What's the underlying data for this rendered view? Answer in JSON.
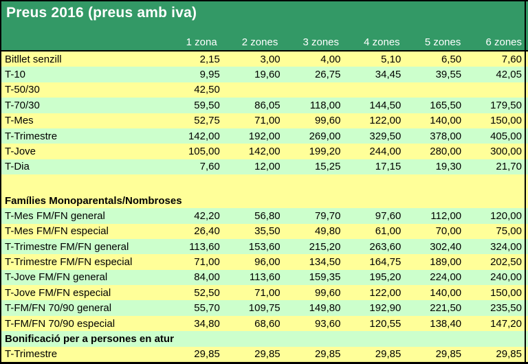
{
  "colors": {
    "header_green": "#339966",
    "row_yellow": "#ffff99",
    "row_mint": "#ccffcc",
    "frame_border": "#000000",
    "header_text": "#ffffff",
    "body_text": "#000000"
  },
  "header": {
    "title": "Preus 2016 (preus amb iva)",
    "columns": [
      "1 zona",
      "2 zones",
      "3 zones",
      "4 zones",
      "5 zones",
      "6 zones"
    ]
  },
  "table": {
    "rows": [
      {
        "label": "Bitllet senzill",
        "style": "yellow",
        "bold": false,
        "tall": false,
        "values": [
          "2,15",
          "3,00",
          "4,00",
          "5,10",
          "6,50",
          "7,60"
        ]
      },
      {
        "label": "T-10",
        "style": "mint",
        "bold": false,
        "tall": false,
        "values": [
          "9,95",
          "19,60",
          "26,75",
          "34,45",
          "39,55",
          "42,05"
        ]
      },
      {
        "label": "T-50/30",
        "style": "yellow",
        "bold": false,
        "tall": false,
        "values": [
          "42,50",
          "",
          "",
          "",
          "",
          ""
        ]
      },
      {
        "label": "T-70/30",
        "style": "mint",
        "bold": false,
        "tall": false,
        "values": [
          "59,50",
          "86,05",
          "118,00",
          "144,50",
          "165,50",
          "179,50"
        ]
      },
      {
        "label": "T-Mes",
        "style": "yellow",
        "bold": false,
        "tall": false,
        "values": [
          "52,75",
          "71,00",
          "99,60",
          "122,00",
          "140,00",
          "150,00"
        ]
      },
      {
        "label": "T-Trimestre",
        "style": "mint",
        "bold": false,
        "tall": false,
        "values": [
          "142,00",
          "192,00",
          "269,00",
          "329,50",
          "378,00",
          "405,00"
        ]
      },
      {
        "label": "T-Jove",
        "style": "yellow",
        "bold": false,
        "tall": false,
        "values": [
          "105,00",
          "142,00",
          "199,20",
          "244,00",
          "280,00",
          "300,00"
        ]
      },
      {
        "label": "T-Dia",
        "style": "mint",
        "bold": false,
        "tall": false,
        "values": [
          "7,60",
          "12,00",
          "15,25",
          "17,15",
          "19,30",
          "21,70"
        ]
      },
      {
        "label": "",
        "style": "yellow",
        "bold": false,
        "tall": true,
        "values": [
          "",
          "",
          "",
          "",
          "",
          ""
        ]
      },
      {
        "label": "Famílies Monoparentals/Nombroses",
        "style": "yellow",
        "bold": true,
        "tall": false,
        "values": [
          "",
          "",
          "",
          "",
          "",
          ""
        ]
      },
      {
        "label": "T-Mes FM/FN general",
        "style": "mint",
        "bold": false,
        "tall": false,
        "values": [
          "42,20",
          "56,80",
          "79,70",
          "97,60",
          "112,00",
          "120,00"
        ]
      },
      {
        "label": "T-Mes FM/FN especial",
        "style": "yellow",
        "bold": false,
        "tall": false,
        "values": [
          "26,40",
          "35,50",
          "49,80",
          "61,00",
          "70,00",
          "75,00"
        ]
      },
      {
        "label": "T-Trimestre FM/FN general",
        "style": "mint",
        "bold": false,
        "tall": false,
        "values": [
          "113,60",
          "153,60",
          "215,20",
          "263,60",
          "302,40",
          "324,00"
        ]
      },
      {
        "label": "T-Trimestre FM/FN especial",
        "style": "yellow",
        "bold": false,
        "tall": false,
        "values": [
          "71,00",
          "96,00",
          "134,50",
          "164,75",
          "189,00",
          "202,50"
        ]
      },
      {
        "label": "T-Jove FM/FN general",
        "style": "mint",
        "bold": false,
        "tall": false,
        "values": [
          "84,00",
          "113,60",
          "159,35",
          "195,20",
          "224,00",
          "240,00"
        ]
      },
      {
        "label": "T-Jove FM/FN especial",
        "style": "yellow",
        "bold": false,
        "tall": false,
        "values": [
          "52,50",
          "71,00",
          "99,60",
          "122,00",
          "140,00",
          "150,00"
        ]
      },
      {
        "label": "T-FM/FN 70/90 general",
        "style": "mint",
        "bold": false,
        "tall": false,
        "values": [
          "55,70",
          "109,75",
          "149,80",
          "192,90",
          "221,50",
          "235,50"
        ]
      },
      {
        "label": "T-FM/FN 70/90 especial",
        "style": "yellow",
        "bold": false,
        "tall": false,
        "values": [
          "34,80",
          "68,60",
          "93,60",
          "120,55",
          "138,40",
          "147,20"
        ]
      },
      {
        "label": "Bonificació per a persones en atur",
        "style": "mint",
        "bold": true,
        "tall": false,
        "values": [
          "",
          "",
          "",
          "",
          "",
          ""
        ]
      },
      {
        "label": "T-Trimestre",
        "style": "yellow",
        "bold": false,
        "tall": false,
        "values": [
          "29,85",
          "29,85",
          "29,85",
          "29,85",
          "29,85",
          "29,85"
        ]
      }
    ]
  }
}
